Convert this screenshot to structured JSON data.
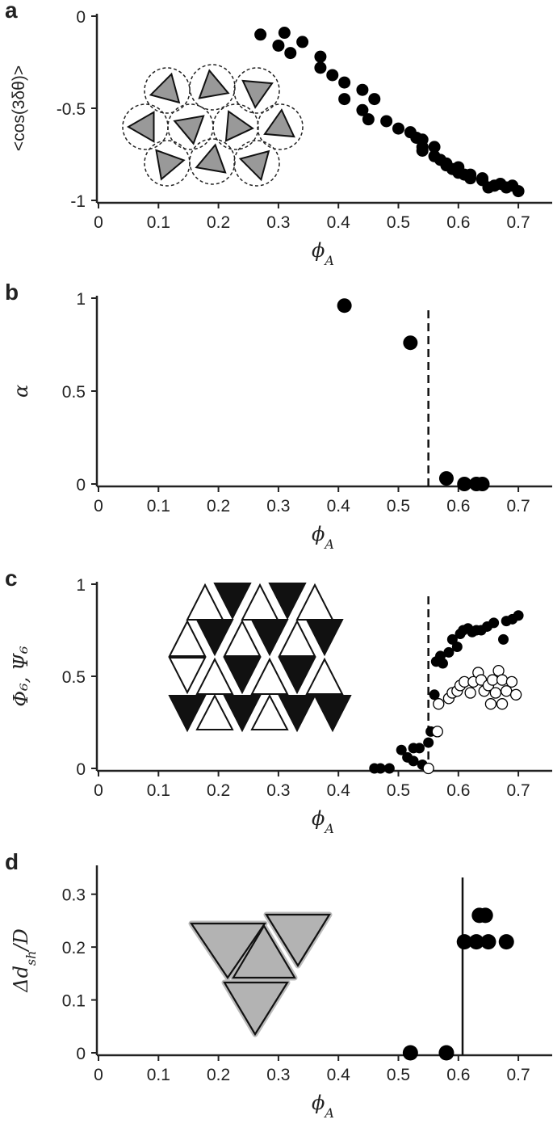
{
  "chart_data": [
    {
      "type": "scatter",
      "panel_label": "a",
      "xlabel": "ϕA",
      "ylabel": "<cos(3δθ)>",
      "xlim": [
        0,
        0.75
      ],
      "ylim": [
        -1,
        0
      ],
      "xticks": [
        0,
        0.1,
        0.2,
        0.3,
        0.4,
        0.5,
        0.6,
        0.7
      ],
      "yticks": [
        -1,
        -0.5,
        0
      ],
      "series": [
        {
          "color": "#000000",
          "filled": true,
          "x": [
            0.27,
            0.3,
            0.31,
            0.32,
            0.34,
            0.37,
            0.37,
            0.39,
            0.41,
            0.41,
            0.44,
            0.44,
            0.45,
            0.46,
            0.48,
            0.5,
            0.52,
            0.53,
            0.54,
            0.54,
            0.54,
            0.56,
            0.56,
            0.57,
            0.58,
            0.58,
            0.59,
            0.6,
            0.6,
            0.61,
            0.62,
            0.62,
            0.64,
            0.64,
            0.65,
            0.66,
            0.67,
            0.68,
            0.69,
            0.7
          ],
          "values": [
            -0.1,
            -0.16,
            -0.09,
            -0.2,
            -0.14,
            -0.28,
            -0.22,
            -0.32,
            -0.36,
            -0.45,
            -0.4,
            -0.51,
            -0.56,
            -0.45,
            -0.57,
            -0.61,
            -0.63,
            -0.66,
            -0.67,
            -0.71,
            -0.73,
            -0.71,
            -0.76,
            -0.78,
            -0.81,
            -0.8,
            -0.83,
            -0.85,
            -0.82,
            -0.86,
            -0.88,
            -0.86,
            -0.89,
            -0.88,
            -0.93,
            -0.92,
            -0.91,
            -0.93,
            -0.92,
            -0.95
          ]
        }
      ],
      "vlines": []
    },
    {
      "type": "scatter",
      "panel_label": "b",
      "xlabel": "ϕA",
      "ylabel": "α",
      "xlim": [
        0,
        0.75
      ],
      "ylim": [
        0,
        1
      ],
      "xticks": [
        0,
        0.1,
        0.2,
        0.3,
        0.4,
        0.5,
        0.6,
        0.7
      ],
      "yticks": [
        0,
        0.5,
        1
      ],
      "series": [
        {
          "color": "#000000",
          "filled": true,
          "x": [
            0.41,
            0.52,
            0.58,
            0.61,
            0.63,
            0.64
          ],
          "values": [
            0.96,
            0.76,
            0.03,
            0,
            0,
            0
          ]
        }
      ],
      "vlines": [
        {
          "x": 0.55,
          "style": "dashed"
        }
      ]
    },
    {
      "type": "scatter",
      "panel_label": "c",
      "xlabel": "ϕA",
      "ylabel": "Φ₆, Ψ₆",
      "xlim": [
        0,
        0.75
      ],
      "ylim": [
        0,
        1
      ],
      "xticks": [
        0,
        0.1,
        0.2,
        0.3,
        0.4,
        0.5,
        0.6,
        0.7
      ],
      "yticks": [
        0,
        0.5,
        1
      ],
      "series": [
        {
          "color": "#000000",
          "filled": true,
          "x": [
            0.46,
            0.47,
            0.485,
            0.505,
            0.515,
            0.525,
            0.525,
            0.535,
            0.54,
            0.55,
            0.554,
            0.56,
            0.563,
            0.57,
            0.574,
            0.584,
            0.59,
            0.598,
            0.603,
            0.608,
            0.616,
            0.623,
            0.63,
            0.638,
            0.648,
            0.659,
            0.675,
            0.68,
            0.69,
            0.7
          ],
          "values": [
            0,
            0,
            0,
            0.1,
            0.06,
            0.11,
            0.04,
            0.11,
            0.02,
            0.14,
            0.2,
            0.4,
            0.58,
            0.61,
            0.57,
            0.63,
            0.7,
            0.66,
            0.73,
            0.75,
            0.76,
            0.74,
            0.75,
            0.75,
            0.77,
            0.79,
            0.7,
            0.8,
            0.81,
            0.83
          ]
        },
        {
          "color": "#000000",
          "filled": false,
          "x": [
            0.55,
            0.565,
            0.567,
            0.584,
            0.59,
            0.598,
            0.603,
            0.61,
            0.62,
            0.625,
            0.633,
            0.638,
            0.643,
            0.65,
            0.657,
            0.662,
            0.667,
            0.673,
            0.68,
            0.689,
            0.696,
            0.654,
            0.673
          ],
          "values": [
            0,
            0.2,
            0.35,
            0.38,
            0.41,
            0.42,
            0.45,
            0.47,
            0.41,
            0.47,
            0.52,
            0.48,
            0.42,
            0.45,
            0.48,
            0.41,
            0.53,
            0.48,
            0.42,
            0.47,
            0.4,
            0.35,
            0.35
          ]
        }
      ],
      "vlines": [
        {
          "x": 0.55,
          "style": "dashed"
        }
      ]
    },
    {
      "type": "scatter",
      "panel_label": "d",
      "xlabel": "ϕA",
      "ylabel": "Δdsh/D",
      "xlim": [
        0,
        0.75
      ],
      "ylim": [
        0,
        0.35
      ],
      "xticks": [
        0,
        0.1,
        0.2,
        0.3,
        0.4,
        0.5,
        0.6,
        0.7
      ],
      "yticks": [
        0,
        0.1,
        0.2,
        0.3
      ],
      "series": [
        {
          "color": "#000000",
          "filled": true,
          "x": [
            0.52,
            0.58,
            0.61,
            0.63,
            0.635,
            0.645,
            0.65,
            0.68
          ],
          "values": [
            0,
            0,
            0.21,
            0.21,
            0.26,
            0.26,
            0.21,
            0.21
          ]
        }
      ],
      "vlines": [
        {
          "x": 0.607,
          "style": "solid"
        }
      ]
    }
  ]
}
